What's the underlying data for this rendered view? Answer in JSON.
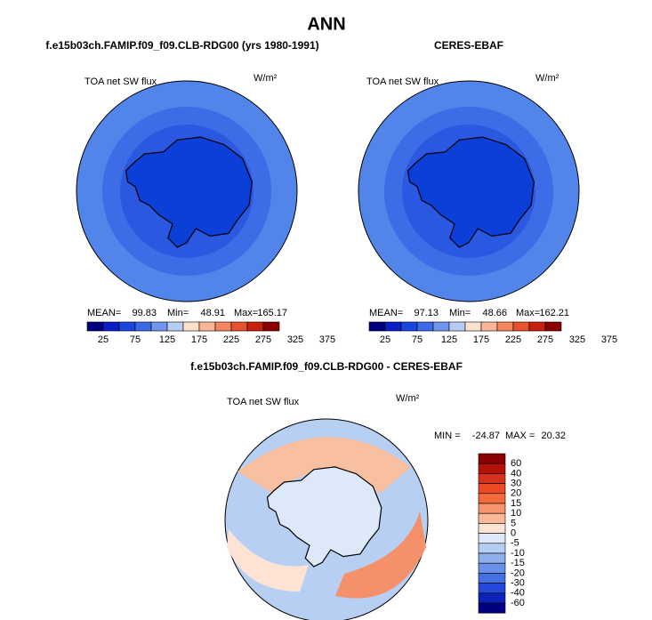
{
  "title": "ANN",
  "panels": [
    {
      "title": "f.e15b03ch.FAMIP.f09_f09.CLB-RDG00 (yrs 1980-1991)",
      "variable": "TOA net SW flux",
      "units": "W/m²",
      "mean_label": "MEAN=",
      "mean": 99.83,
      "min_label": "Min=",
      "min": 48.91,
      "max_label": "Max=",
      "max": 165.17,
      "colorbar": [
        25,
        75,
        125,
        175,
        225,
        275,
        325,
        375
      ]
    },
    {
      "title": "CERES-EBAF",
      "variable": "TOA net SW flux",
      "units": "W/m²",
      "mean_label": "MEAN=",
      "mean": 97.13,
      "min_label": "Min=",
      "min": 48.66,
      "max_label": "Max=",
      "max": 162.21,
      "colorbar": [
        25,
        75,
        125,
        175,
        225,
        275,
        325,
        375
      ]
    }
  ],
  "difference": {
    "title": "f.e15b03ch.FAMIP.f09_f09.CLB-RDG00 - CERES-EBAF",
    "variable": "TOA net SW flux",
    "units": "W/m²",
    "min_label": "MIN =",
    "min": -24.87,
    "max_label": "MAX =",
    "max": 20.32,
    "colorbar": [
      60,
      40,
      30,
      20,
      15,
      10,
      5,
      0,
      -5,
      -10,
      -15,
      -20,
      -30,
      -40,
      -60
    ]
  }
}
